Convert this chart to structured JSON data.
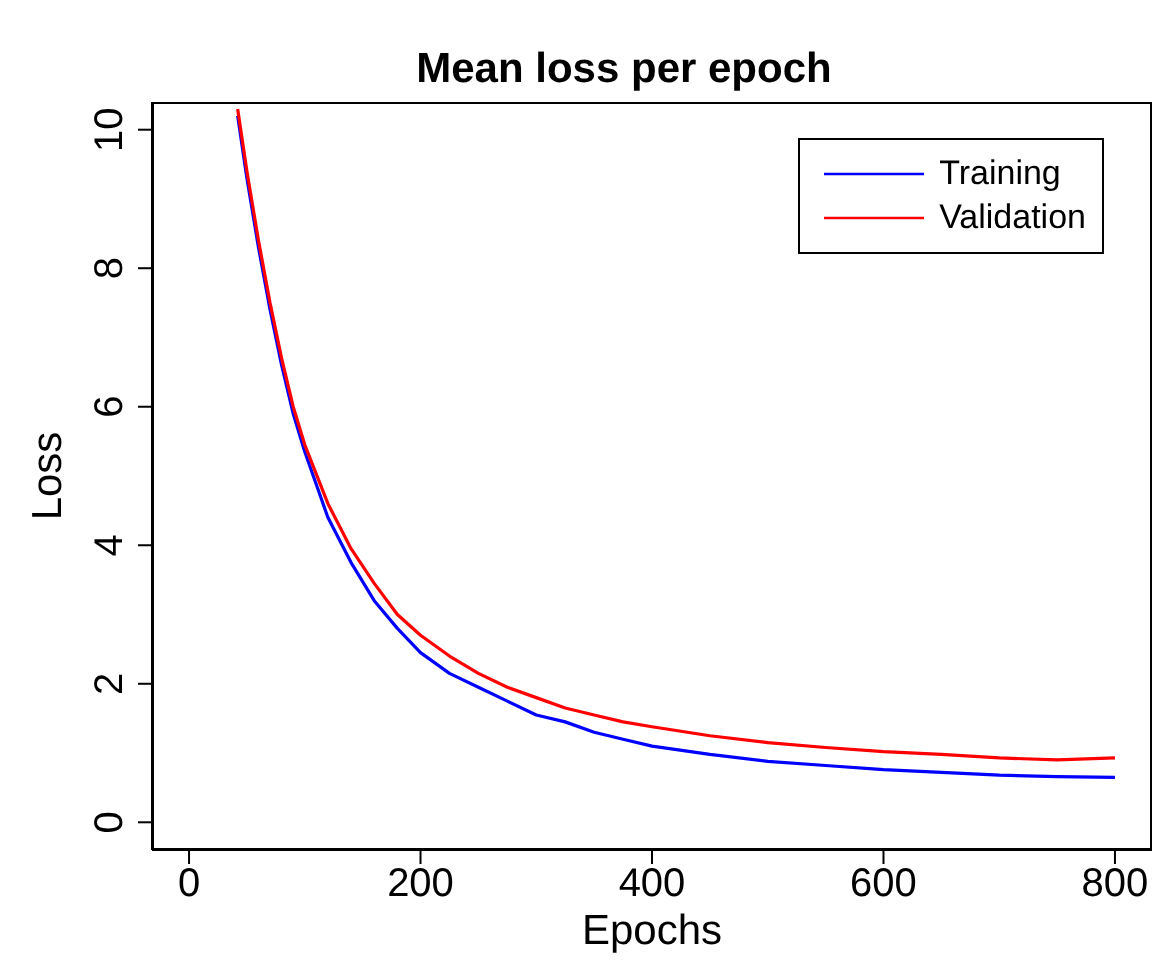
{
  "chart_data": {
    "type": "line",
    "title": "Mean loss per epoch",
    "xlabel": "Epochs",
    "ylabel": "Loss",
    "x": [
      42,
      50,
      60,
      70,
      80,
      90,
      100,
      120,
      140,
      160,
      180,
      200,
      225,
      250,
      275,
      300,
      325,
      350,
      375,
      400,
      450,
      500,
      550,
      600,
      650,
      700,
      750,
      800
    ],
    "series": [
      {
        "name": "Training",
        "color": "#0000ff",
        "values": [
          10.2,
          9.3,
          8.3,
          7.4,
          6.6,
          5.9,
          5.35,
          4.4,
          3.75,
          3.2,
          2.8,
          2.45,
          2.15,
          1.95,
          1.75,
          1.55,
          1.45,
          1.3,
          1.2,
          1.1,
          0.98,
          0.88,
          0.82,
          0.76,
          0.72,
          0.68,
          0.66,
          0.65
        ]
      },
      {
        "name": "Validation",
        "color": "#ff0000",
        "values": [
          10.3,
          9.4,
          8.4,
          7.5,
          6.7,
          6.0,
          5.45,
          4.6,
          3.95,
          3.45,
          3.0,
          2.7,
          2.4,
          2.15,
          1.95,
          1.8,
          1.65,
          1.55,
          1.45,
          1.38,
          1.25,
          1.15,
          1.08,
          1.02,
          0.98,
          0.93,
          0.9,
          0.93
        ]
      }
    ],
    "xlim": [
      -32,
      832
    ],
    "xticks": [
      0,
      200,
      400,
      600,
      800
    ],
    "ylim": [
      -0.4,
      10.4
    ],
    "yticks": [
      0,
      2,
      4,
      6,
      8,
      10
    ],
    "grid": false,
    "legend": "top right",
    "marker": "none",
    "line_style": "solid"
  }
}
